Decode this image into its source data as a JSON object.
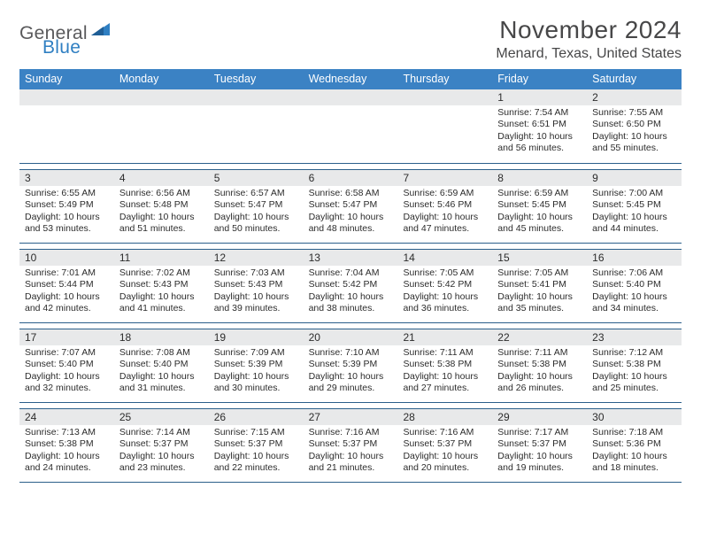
{
  "logo": {
    "text1": "General",
    "text2": "Blue"
  },
  "title": "November 2024",
  "location": "Menard, Texas, United States",
  "colors": {
    "header_bg": "#3b82c4",
    "header_text": "#ffffff",
    "daynum_bg": "#e8e9ea",
    "rule": "#2b5f8a",
    "body_text": "#2c2c2c",
    "logo_gray": "#59595b",
    "logo_blue": "#2f7fc2"
  },
  "day_headers": [
    "Sunday",
    "Monday",
    "Tuesday",
    "Wednesday",
    "Thursday",
    "Friday",
    "Saturday"
  ],
  "weeks": [
    [
      {
        "n": "",
        "sr": "",
        "ss": "",
        "dl": ""
      },
      {
        "n": "",
        "sr": "",
        "ss": "",
        "dl": ""
      },
      {
        "n": "",
        "sr": "",
        "ss": "",
        "dl": ""
      },
      {
        "n": "",
        "sr": "",
        "ss": "",
        "dl": ""
      },
      {
        "n": "",
        "sr": "",
        "ss": "",
        "dl": ""
      },
      {
        "n": "1",
        "sr": "Sunrise: 7:54 AM",
        "ss": "Sunset: 6:51 PM",
        "dl": "Daylight: 10 hours and 56 minutes."
      },
      {
        "n": "2",
        "sr": "Sunrise: 7:55 AM",
        "ss": "Sunset: 6:50 PM",
        "dl": "Daylight: 10 hours and 55 minutes."
      }
    ],
    [
      {
        "n": "3",
        "sr": "Sunrise: 6:55 AM",
        "ss": "Sunset: 5:49 PM",
        "dl": "Daylight: 10 hours and 53 minutes."
      },
      {
        "n": "4",
        "sr": "Sunrise: 6:56 AM",
        "ss": "Sunset: 5:48 PM",
        "dl": "Daylight: 10 hours and 51 minutes."
      },
      {
        "n": "5",
        "sr": "Sunrise: 6:57 AM",
        "ss": "Sunset: 5:47 PM",
        "dl": "Daylight: 10 hours and 50 minutes."
      },
      {
        "n": "6",
        "sr": "Sunrise: 6:58 AM",
        "ss": "Sunset: 5:47 PM",
        "dl": "Daylight: 10 hours and 48 minutes."
      },
      {
        "n": "7",
        "sr": "Sunrise: 6:59 AM",
        "ss": "Sunset: 5:46 PM",
        "dl": "Daylight: 10 hours and 47 minutes."
      },
      {
        "n": "8",
        "sr": "Sunrise: 6:59 AM",
        "ss": "Sunset: 5:45 PM",
        "dl": "Daylight: 10 hours and 45 minutes."
      },
      {
        "n": "9",
        "sr": "Sunrise: 7:00 AM",
        "ss": "Sunset: 5:45 PM",
        "dl": "Daylight: 10 hours and 44 minutes."
      }
    ],
    [
      {
        "n": "10",
        "sr": "Sunrise: 7:01 AM",
        "ss": "Sunset: 5:44 PM",
        "dl": "Daylight: 10 hours and 42 minutes."
      },
      {
        "n": "11",
        "sr": "Sunrise: 7:02 AM",
        "ss": "Sunset: 5:43 PM",
        "dl": "Daylight: 10 hours and 41 minutes."
      },
      {
        "n": "12",
        "sr": "Sunrise: 7:03 AM",
        "ss": "Sunset: 5:43 PM",
        "dl": "Daylight: 10 hours and 39 minutes."
      },
      {
        "n": "13",
        "sr": "Sunrise: 7:04 AM",
        "ss": "Sunset: 5:42 PM",
        "dl": "Daylight: 10 hours and 38 minutes."
      },
      {
        "n": "14",
        "sr": "Sunrise: 7:05 AM",
        "ss": "Sunset: 5:42 PM",
        "dl": "Daylight: 10 hours and 36 minutes."
      },
      {
        "n": "15",
        "sr": "Sunrise: 7:05 AM",
        "ss": "Sunset: 5:41 PM",
        "dl": "Daylight: 10 hours and 35 minutes."
      },
      {
        "n": "16",
        "sr": "Sunrise: 7:06 AM",
        "ss": "Sunset: 5:40 PM",
        "dl": "Daylight: 10 hours and 34 minutes."
      }
    ],
    [
      {
        "n": "17",
        "sr": "Sunrise: 7:07 AM",
        "ss": "Sunset: 5:40 PM",
        "dl": "Daylight: 10 hours and 32 minutes."
      },
      {
        "n": "18",
        "sr": "Sunrise: 7:08 AM",
        "ss": "Sunset: 5:40 PM",
        "dl": "Daylight: 10 hours and 31 minutes."
      },
      {
        "n": "19",
        "sr": "Sunrise: 7:09 AM",
        "ss": "Sunset: 5:39 PM",
        "dl": "Daylight: 10 hours and 30 minutes."
      },
      {
        "n": "20",
        "sr": "Sunrise: 7:10 AM",
        "ss": "Sunset: 5:39 PM",
        "dl": "Daylight: 10 hours and 29 minutes."
      },
      {
        "n": "21",
        "sr": "Sunrise: 7:11 AM",
        "ss": "Sunset: 5:38 PM",
        "dl": "Daylight: 10 hours and 27 minutes."
      },
      {
        "n": "22",
        "sr": "Sunrise: 7:11 AM",
        "ss": "Sunset: 5:38 PM",
        "dl": "Daylight: 10 hours and 26 minutes."
      },
      {
        "n": "23",
        "sr": "Sunrise: 7:12 AM",
        "ss": "Sunset: 5:38 PM",
        "dl": "Daylight: 10 hours and 25 minutes."
      }
    ],
    [
      {
        "n": "24",
        "sr": "Sunrise: 7:13 AM",
        "ss": "Sunset: 5:38 PM",
        "dl": "Daylight: 10 hours and 24 minutes."
      },
      {
        "n": "25",
        "sr": "Sunrise: 7:14 AM",
        "ss": "Sunset: 5:37 PM",
        "dl": "Daylight: 10 hours and 23 minutes."
      },
      {
        "n": "26",
        "sr": "Sunrise: 7:15 AM",
        "ss": "Sunset: 5:37 PM",
        "dl": "Daylight: 10 hours and 22 minutes."
      },
      {
        "n": "27",
        "sr": "Sunrise: 7:16 AM",
        "ss": "Sunset: 5:37 PM",
        "dl": "Daylight: 10 hours and 21 minutes."
      },
      {
        "n": "28",
        "sr": "Sunrise: 7:16 AM",
        "ss": "Sunset: 5:37 PM",
        "dl": "Daylight: 10 hours and 20 minutes."
      },
      {
        "n": "29",
        "sr": "Sunrise: 7:17 AM",
        "ss": "Sunset: 5:37 PM",
        "dl": "Daylight: 10 hours and 19 minutes."
      },
      {
        "n": "30",
        "sr": "Sunrise: 7:18 AM",
        "ss": "Sunset: 5:36 PM",
        "dl": "Daylight: 10 hours and 18 minutes."
      }
    ]
  ]
}
